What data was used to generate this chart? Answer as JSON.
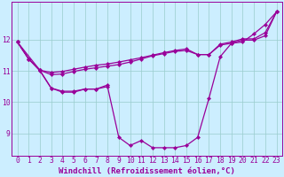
{
  "background_color": "#cceeff",
  "line_color": "#990099",
  "grid_color": "#99cccc",
  "xlabel": "Windchill (Refroidissement éolien,°C)",
  "xlabel_fontsize": 6.5,
  "tick_fontsize": 5.8,
  "xlim": [
    -0.5,
    23.5
  ],
  "ylim": [
    8.3,
    13.2
  ],
  "yticks": [
    9,
    10,
    11,
    12
  ],
  "xticks": [
    0,
    1,
    2,
    3,
    4,
    5,
    6,
    7,
    8,
    9,
    10,
    11,
    12,
    13,
    14,
    15,
    16,
    17,
    18,
    19,
    20,
    21,
    22,
    23
  ],
  "series": [
    {
      "x": [
        0,
        1,
        2,
        3,
        4,
        5,
        6,
        7,
        8,
        9,
        10,
        11,
        12,
        13,
        14,
        15,
        16,
        17,
        18,
        19,
        20,
        21,
        22,
        23
      ],
      "y": [
        11.92,
        11.38,
        11.0,
        10.45,
        10.32,
        10.32,
        10.42,
        10.42,
        10.5,
        8.88,
        8.62,
        8.78,
        8.55,
        8.55,
        8.55,
        8.62,
        8.88,
        10.12,
        11.45,
        11.88,
        11.92,
        12.18,
        12.48,
        12.88
      ]
    },
    {
      "x": [
        0,
        1,
        2,
        3,
        4,
        5,
        6,
        7,
        8,
        9,
        10,
        11,
        12,
        13,
        14,
        15,
        16,
        17,
        18,
        19,
        20,
        21,
        22,
        23
      ],
      "y": [
        11.92,
        11.38,
        11.02,
        10.95,
        10.98,
        11.05,
        11.12,
        11.18,
        11.22,
        11.28,
        11.35,
        11.42,
        11.5,
        11.58,
        11.65,
        11.7,
        11.52,
        11.52,
        11.85,
        11.92,
        12.02,
        12.02,
        12.22,
        12.88
      ]
    },
    {
      "x": [
        0,
        1,
        2,
        3,
        4,
        5,
        6,
        7,
        8,
        9,
        10,
        11,
        12,
        13,
        14,
        15,
        16,
        17,
        18,
        19,
        20,
        21,
        22,
        23
      ],
      "y": [
        11.92,
        11.38,
        11.02,
        10.88,
        10.9,
        10.98,
        11.05,
        11.1,
        11.15,
        11.2,
        11.28,
        11.38,
        11.48,
        11.55,
        11.62,
        11.65,
        11.52,
        11.52,
        11.82,
        11.88,
        11.98,
        11.98,
        12.12,
        12.88
      ]
    },
    {
      "x": [
        0,
        2,
        3,
        4,
        5,
        6,
        7,
        8
      ],
      "y": [
        11.92,
        11.02,
        10.45,
        10.35,
        10.35,
        10.42,
        10.42,
        10.55
      ]
    }
  ]
}
